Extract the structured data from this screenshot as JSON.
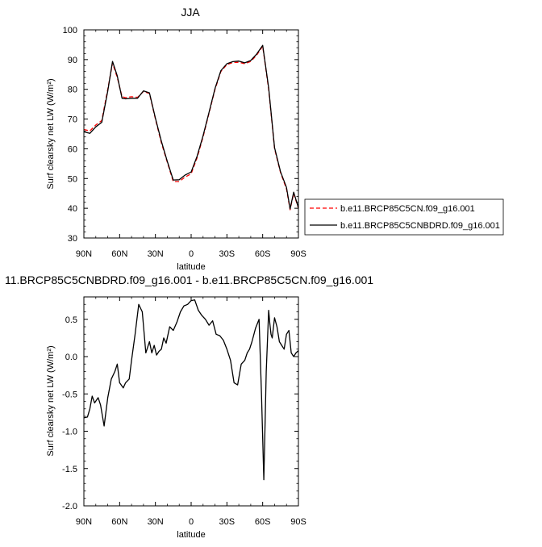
{
  "chart_data": [
    {
      "type": "line",
      "title": "JJA",
      "xlabel": "latitude",
      "ylabel": "Surf clearsky net LW (W/m²)",
      "xlim": [
        90,
        -90
      ],
      "ylim": [
        30,
        100
      ],
      "x_ticks": [
        90,
        60,
        30,
        0,
        -30,
        -60,
        -90
      ],
      "x_tick_labels": [
        "90N",
        "60N",
        "30N",
        "0",
        "30S",
        "60S",
        "90S"
      ],
      "y_ticks": [
        30,
        40,
        50,
        60,
        70,
        80,
        90,
        100
      ],
      "grid": false,
      "legend_position": "right-bottom",
      "x": [
        90,
        85,
        80,
        75,
        70,
        66,
        62,
        58,
        55,
        50,
        45,
        40,
        35,
        30,
        25,
        20,
        15,
        10,
        5,
        0,
        -5,
        -10,
        -15,
        -20,
        -25,
        -30,
        -35,
        -40,
        -45,
        -50,
        -55,
        -60,
        -65,
        -70,
        -75,
        -80,
        -83,
        -86,
        -90
      ],
      "series": [
        {
          "name": "b.e11.BRCP85C5CN.f09_g16.001",
          "color": "#ff0000",
          "dash": true,
          "values": [
            66.5,
            66.0,
            68.0,
            69.5,
            80.0,
            88.8,
            84.0,
            77.5,
            77.2,
            77.5,
            77.3,
            79.3,
            78.6,
            70.0,
            62.0,
            55.5,
            49.0,
            49.0,
            50.5,
            51.6,
            57.0,
            64.0,
            72.0,
            80.0,
            86.0,
            88.3,
            89.0,
            89.1,
            88.6,
            89.4,
            91.5,
            94.5,
            80.0,
            60.0,
            52.0,
            46.5,
            39.5,
            45.0,
            40.0
          ]
        },
        {
          "name": "b.e11.BRCP85C5CNBDRD.f09_g16.001",
          "color": "#000000",
          "dash": false,
          "values": [
            65.7,
            65.2,
            67.4,
            68.9,
            79.4,
            89.4,
            84.5,
            77.0,
            76.8,
            77.0,
            77.0,
            79.5,
            78.8,
            70.3,
            62.5,
            55.8,
            49.5,
            49.6,
            51.2,
            52.2,
            57.5,
            64.4,
            72.3,
            80.3,
            86.3,
            88.6,
            89.3,
            89.5,
            88.9,
            89.7,
            91.9,
            94.8,
            80.5,
            60.4,
            52.3,
            47.0,
            39.8,
            45.4,
            40.2
          ]
        }
      ]
    },
    {
      "type": "line",
      "title": "11.BRCP85C5CNBDRD.f09_g16.001 - b.e11.BRCP85C5CN.f09_g16.001",
      "xlabel": "latitude",
      "ylabel": "Surf clearsky net LW (W/m²)",
      "xlim": [
        90,
        -90
      ],
      "ylim": [
        -2.0,
        0.8
      ],
      "x_ticks": [
        90,
        60,
        30,
        0,
        -30,
        -60,
        -90
      ],
      "x_tick_labels": [
        "90N",
        "60N",
        "30N",
        "0",
        "30S",
        "60S",
        "90S"
      ],
      "y_ticks": [
        -2.0,
        -1.5,
        -1.0,
        -0.5,
        0.0,
        0.5
      ],
      "y_tick_labels": [
        "-2.0",
        "-1.5",
        "-1.0",
        "-0.5",
        "0.0",
        "0.5"
      ],
      "grid": false,
      "x": [
        90,
        87,
        85,
        83,
        81,
        78,
        76,
        73,
        70,
        67,
        64,
        62,
        60,
        57,
        55,
        52,
        50,
        47,
        44,
        41,
        38,
        35,
        33,
        31,
        29,
        27,
        25,
        23,
        21,
        18,
        15,
        12,
        9,
        6,
        3,
        0,
        -3,
        -6,
        -9,
        -12,
        -15,
        -18,
        -21,
        -24,
        -27,
        -30,
        -33,
        -36,
        -39,
        -42,
        -45,
        -47,
        -49,
        -51,
        -54,
        -57,
        -59,
        -61,
        -63,
        -65,
        -66,
        -67,
        -68,
        -70,
        -72,
        -74,
        -76,
        -78,
        -80,
        -82,
        -84,
        -86,
        -88,
        -90
      ],
      "series": [
        {
          "name": "",
          "color": "#000000",
          "dash": false,
          "values": [
            -0.82,
            -0.81,
            -0.7,
            -0.53,
            -0.62,
            -0.55,
            -0.65,
            -0.93,
            -0.55,
            -0.3,
            -0.2,
            -0.1,
            -0.35,
            -0.42,
            -0.35,
            -0.3,
            -0.05,
            0.3,
            0.7,
            0.6,
            0.05,
            0.2,
            0.05,
            0.15,
            0.02,
            0.07,
            0.1,
            0.25,
            0.18,
            0.4,
            0.35,
            0.46,
            0.6,
            0.68,
            0.7,
            0.75,
            0.76,
            0.62,
            0.55,
            0.5,
            0.42,
            0.48,
            0.3,
            0.28,
            0.22,
            0.1,
            -0.05,
            -0.35,
            -0.38,
            -0.1,
            -0.05,
            0.05,
            0.1,
            0.2,
            0.38,
            0.5,
            -0.5,
            -1.65,
            -0.2,
            0.62,
            0.45,
            0.3,
            0.25,
            0.52,
            0.4,
            0.2,
            0.15,
            0.1,
            0.3,
            0.35,
            0.05,
            0.0,
            0.05,
            0.08
          ]
        }
      ]
    }
  ]
}
